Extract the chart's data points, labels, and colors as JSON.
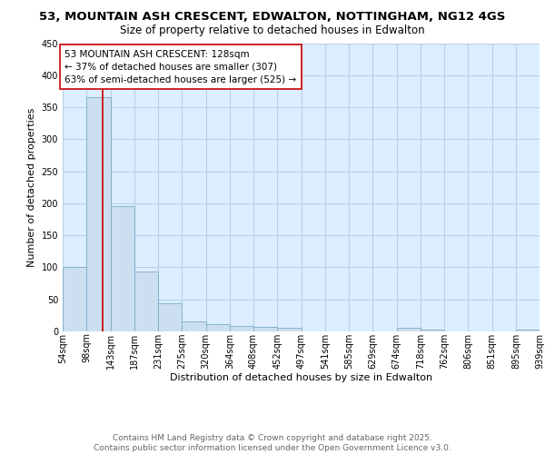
{
  "title_line1": "53, MOUNTAIN ASH CRESCENT, EDWALTON, NOTTINGHAM, NG12 4GS",
  "title_line2": "Size of property relative to detached houses in Edwalton",
  "xlabel": "Distribution of detached houses by size in Edwalton",
  "ylabel": "Number of detached properties",
  "bin_edges": [
    54,
    98,
    143,
    187,
    231,
    275,
    320,
    364,
    408,
    452,
    497,
    541,
    585,
    629,
    674,
    718,
    762,
    806,
    851,
    895,
    939
  ],
  "bar_heights": [
    100,
    365,
    195,
    93,
    44,
    15,
    12,
    9,
    7,
    5,
    0,
    0,
    0,
    0,
    5,
    3,
    0,
    0,
    0,
    3
  ],
  "bar_color": "#ccdff0",
  "bar_edgecolor": "#7aaac8",
  "property_size": 128,
  "vline_color": "#cc0000",
  "annotation_text": "53 MOUNTAIN ASH CRESCENT: 128sqm\n← 37% of detached houses are smaller (307)\n63% of semi-detached houses are larger (525) →",
  "annotation_box_color": "#ffffff",
  "annotation_box_edgecolor": "#cc0000",
  "tick_labels": [
    "54sqm",
    "98sqm",
    "143sqm",
    "187sqm",
    "231sqm",
    "275sqm",
    "320sqm",
    "364sqm",
    "408sqm",
    "452sqm",
    "497sqm",
    "541sqm",
    "585sqm",
    "629sqm",
    "674sqm",
    "718sqm",
    "762sqm",
    "806sqm",
    "851sqm",
    "895sqm",
    "939sqm"
  ],
  "ylim": [
    0,
    450
  ],
  "yticks": [
    0,
    50,
    100,
    150,
    200,
    250,
    300,
    350,
    400,
    450
  ],
  "grid_color": "#b8d0e8",
  "bg_color": "#dceeff",
  "footer_text": "Contains HM Land Registry data © Crown copyright and database right 2025.\nContains public sector information licensed under the Open Government Licence v3.0.",
  "title_fontsize": 9.5,
  "subtitle_fontsize": 8.5,
  "label_fontsize": 8,
  "tick_fontsize": 7,
  "footer_fontsize": 6.5,
  "annot_fontsize": 7.5
}
